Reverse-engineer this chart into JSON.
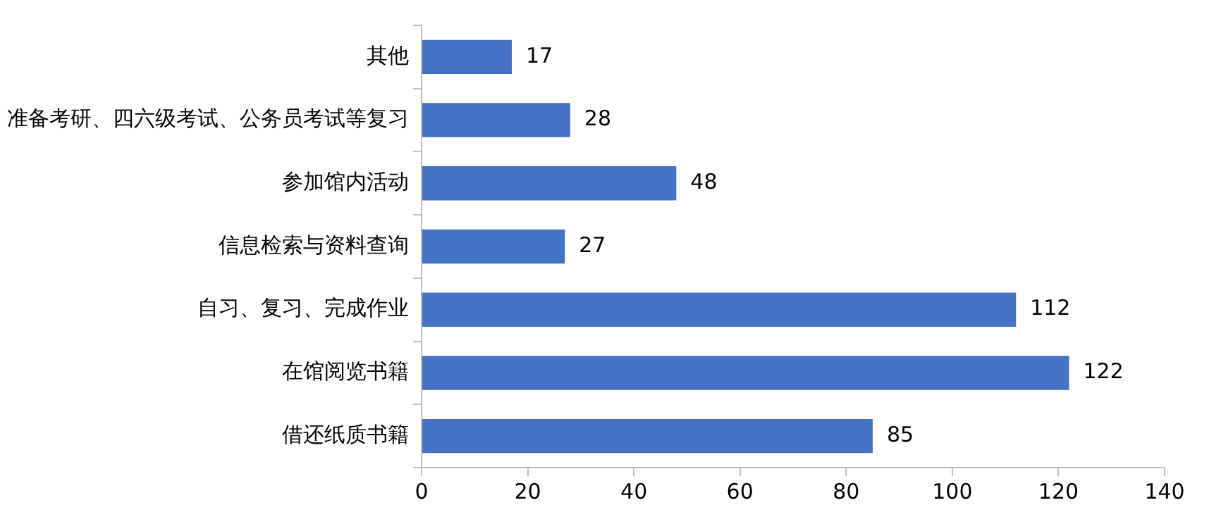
{
  "chart_data": {
    "type": "bar",
    "orientation": "horizontal",
    "categories": [
      "其他",
      "准备考研、四六级考试、公务员考试等复习",
      "参加馆内活动",
      "信息检索与资料查询",
      "自习、复习、完成作业",
      "在馆阅览书籍",
      "借还纸质书籍"
    ],
    "values": [
      17,
      28,
      48,
      27,
      112,
      122,
      85
    ],
    "color": "#4472c4",
    "xlim": [
      0,
      140
    ],
    "xticks": [
      0,
      20,
      40,
      60,
      80,
      100,
      120,
      140
    ],
    "grid": false,
    "legend": false,
    "data_labels": true
  }
}
